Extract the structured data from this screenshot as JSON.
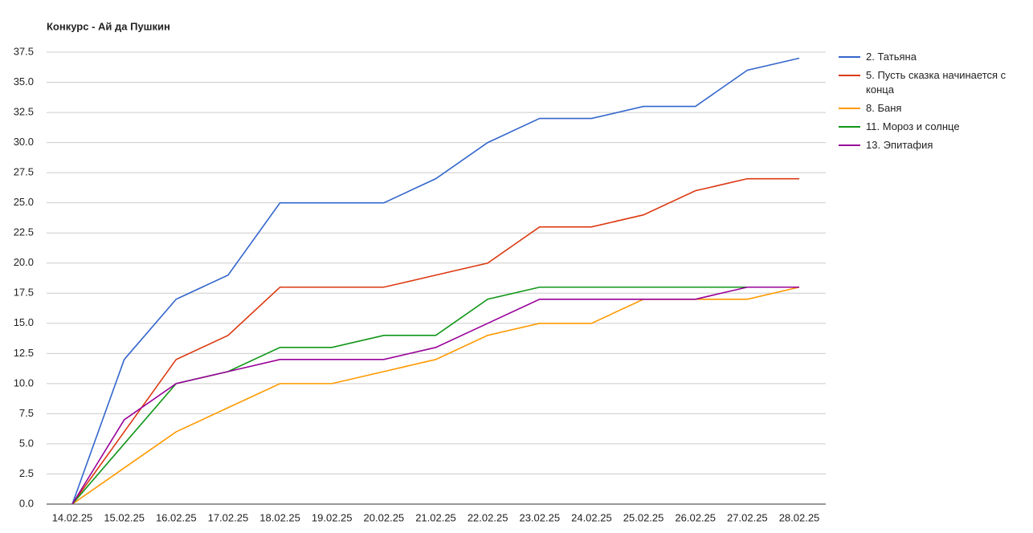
{
  "chart_data": {
    "type": "line",
    "title": "Конкурс - Ай да Пушкин",
    "categories": [
      "14.02.25",
      "15.02.25",
      "16.02.25",
      "17.02.25",
      "18.02.25",
      "19.02.25",
      "20.02.25",
      "21.02.25",
      "22.02.25",
      "23.02.25",
      "24.02.25",
      "25.02.25",
      "26.02.25",
      "27.02.25",
      "28.02.25"
    ],
    "series": [
      {
        "name": "2. Татьяна",
        "color": "#3366cc",
        "values": [
          0,
          12,
          17,
          19,
          25,
          25,
          25,
          27,
          30,
          32,
          32,
          33,
          33,
          36,
          37
        ]
      },
      {
        "name": "5. Пусть сказка начинается с конца",
        "color": "#dc3912",
        "values": [
          0,
          6,
          12,
          14,
          18,
          18,
          18,
          19,
          20,
          23,
          23,
          24,
          26,
          27,
          27
        ]
      },
      {
        "name": "8. Баня",
        "color": "#ff9900",
        "values": [
          0,
          3,
          6,
          8,
          10,
          10,
          11,
          12,
          14,
          15,
          15,
          17,
          17,
          17,
          18
        ]
      },
      {
        "name": "11. Мороз и солнце",
        "color": "#109618",
        "values": [
          0,
          5,
          10,
          11,
          13,
          13,
          14,
          14,
          17,
          18,
          18,
          18,
          18,
          18,
          18
        ]
      },
      {
        "name": "13. Эпитафия",
        "color": "#990099",
        "values": [
          0,
          7,
          10,
          11,
          12,
          12,
          12,
          13,
          15,
          17,
          17,
          17,
          17,
          18,
          18
        ]
      }
    ],
    "ylim": [
      0,
      37.5
    ],
    "yticks": [
      {
        "value": 0,
        "label": "0.0"
      },
      2.5,
      {
        "value": 5,
        "label": "5.0"
      },
      7.5,
      {
        "value": 10,
        "label": "10.0"
      },
      12.5,
      {
        "value": 15,
        "label": "15.0"
      },
      17.5,
      {
        "value": 20,
        "label": "20.0"
      },
      22.5,
      {
        "value": 25,
        "label": "25.0"
      },
      27.5,
      {
        "value": 30,
        "label": "30.0"
      },
      32.5,
      {
        "value": 35,
        "label": "35.0"
      },
      37.5
    ],
    "grid": true,
    "legend": "right"
  }
}
